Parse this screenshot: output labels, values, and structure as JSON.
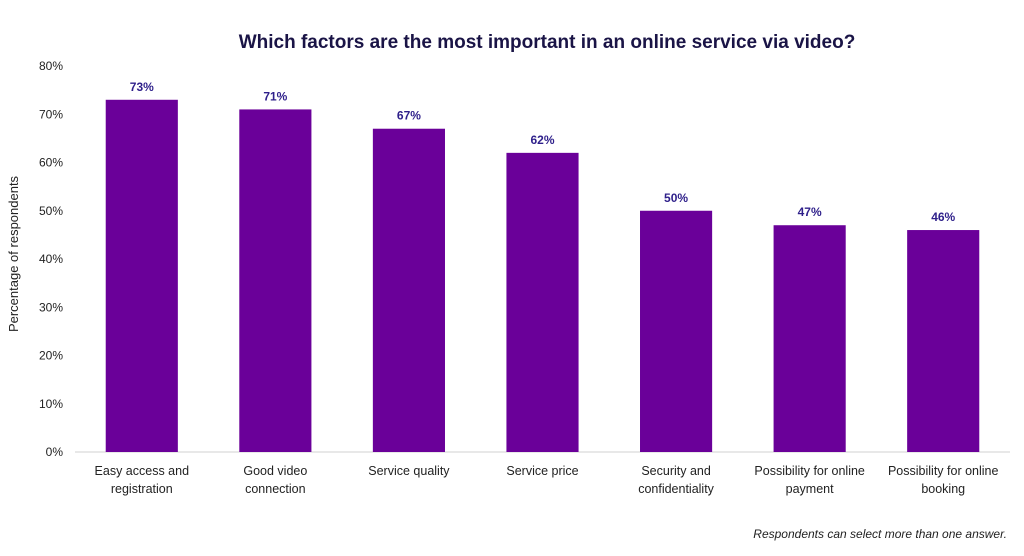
{
  "chart_data": {
    "type": "bar",
    "title": "Which factors are the most important in an online service via video?",
    "ylabel": "Percentage of respondents",
    "xlabel": "",
    "categories": [
      [
        "Easy access and",
        "registration"
      ],
      [
        "Good video",
        "connection"
      ],
      [
        "Service quality"
      ],
      [
        "Service price"
      ],
      [
        "Security and",
        "confidentiality"
      ],
      [
        "Possibility for online",
        "payment"
      ],
      [
        "Possibility for online",
        "booking"
      ]
    ],
    "values": [
      73,
      71,
      67,
      62,
      50,
      47,
      46
    ],
    "value_labels": [
      "73%",
      "71%",
      "67%",
      "62%",
      "50%",
      "47%",
      "46%"
    ],
    "ylim": [
      0,
      80
    ],
    "yticks": [
      0,
      10,
      20,
      30,
      40,
      50,
      60,
      70,
      80
    ],
    "ytick_labels": [
      "0%",
      "10%",
      "20%",
      "30%",
      "40%",
      "50%",
      "60%",
      "70%",
      "80%"
    ],
    "grid": false,
    "bar_color": "#6a0099"
  },
  "footnote": "Respondents can select more than one answer."
}
